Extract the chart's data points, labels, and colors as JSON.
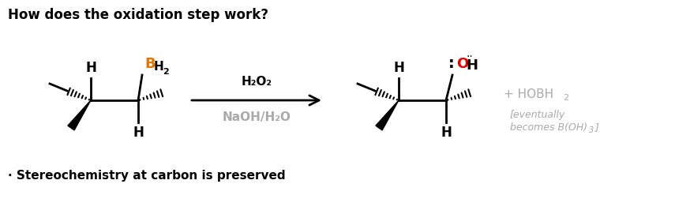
{
  "title": "How does the oxidation step work?",
  "title_fontsize": 12,
  "bg_color": "#ffffff",
  "reagent_above": "H₂O₂",
  "reagent_below": "NaOH/H₂O",
  "reagent_above_color": "#000000",
  "reagent_below_color": "#aaaaaa",
  "byproduct_color": "#aaaaaa",
  "stereo_note": "· Stereochemistry at carbon is preserved",
  "stereo_fontsize": 11,
  "orange_color": "#e07800",
  "red_color": "#dd0000",
  "black_color": "#000000",
  "gray_color": "#aaaaaa"
}
